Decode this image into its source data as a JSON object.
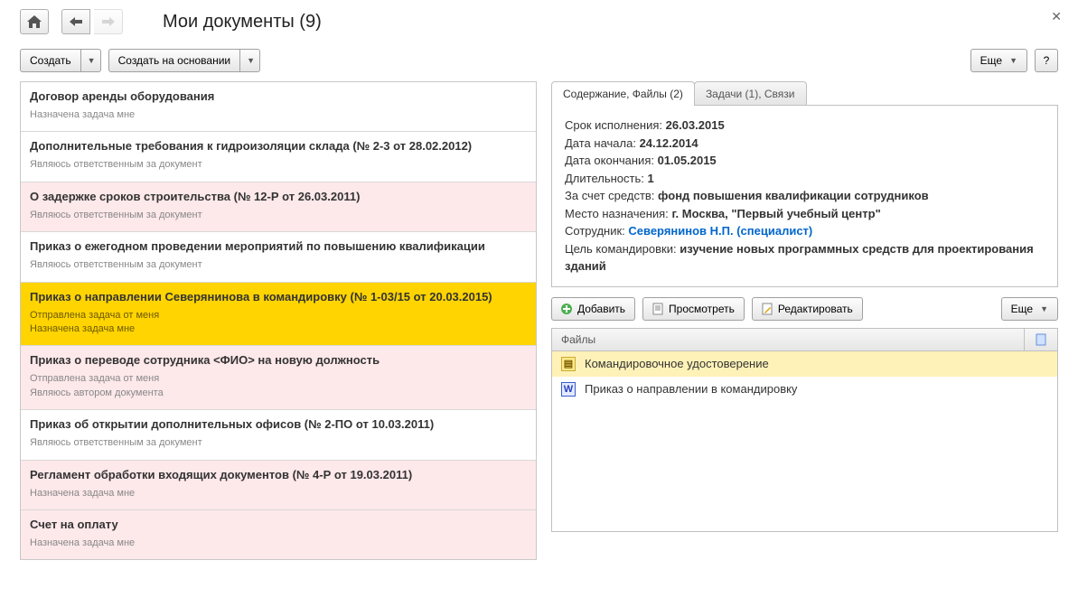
{
  "title": "Мои документы (9)",
  "toolbar": {
    "create": "Создать",
    "create_based_on": "Создать на основании",
    "more": "Еще",
    "help": "?"
  },
  "documents": [
    {
      "title": "Договор аренды оборудования",
      "sub": "Назначена задача мне",
      "variant": ""
    },
    {
      "title": "Дополнительные требования к гидроизоляции склада (№ 2-3 от 28.02.2012)",
      "sub": "Являюсь ответственным за документ",
      "variant": ""
    },
    {
      "title": "О задержке сроков строительства (№ 12-Р от 26.03.2011)",
      "sub": "Являюсь ответственным за документ",
      "variant": "pink"
    },
    {
      "title": "Приказ о ежегодном проведении мероприятий по повышению квалификации",
      "sub": "Являюсь ответственным за документ",
      "variant": ""
    },
    {
      "title": "Приказ о направлении Северянинова в командировку (№ 1-03/15 от 20.03.2015)",
      "sub": "Отправлена задача от меня\nНазначена задача мне",
      "variant": "yellow"
    },
    {
      "title": "Приказ о переводе сотрудника <ФИО> на новую должность",
      "sub": "Отправлена задача от меня\nЯвляюсь автором документа",
      "variant": "pink"
    },
    {
      "title": "Приказ об открытии дополнительных офисов (№ 2-ПО от 10.03.2011)",
      "sub": "Являюсь ответственным за документ",
      "variant": ""
    },
    {
      "title": "Регламент обработки входящих документов (№ 4-Р от 19.03.2011)",
      "sub": "Назначена задача мне",
      "variant": "pink"
    },
    {
      "title": "Счет на оплату",
      "sub": "Назначена задача мне",
      "variant": "pink"
    }
  ],
  "tabs": {
    "content_files": "Содержание, Файлы (2)",
    "tasks_links": "Задачи (1), Связи"
  },
  "details": {
    "due_label": "Срок исполнения:",
    "due_value": "26.03.2015",
    "start_label": "Дата начала:",
    "start_value": "24.12.2014",
    "end_label": "Дата окончания:",
    "end_value": "01.05.2015",
    "duration_label": "Длительность:",
    "duration_value": "1",
    "funds_label": "За счет средств:",
    "funds_value": "фонд повышения квалификации сотрудников",
    "place_label": "Место назначения:",
    "place_value": "г. Москва, \"Первый учебный центр\"",
    "employee_label": "Сотрудник:",
    "employee_value": "Северянинов Н.П. (специалист)",
    "goal_label": "Цель командировки:",
    "goal_value": "изучение новых программных средств для проектирования зданий"
  },
  "file_actions": {
    "add": "Добавить",
    "view": "Просмотреть",
    "edit": "Редактировать",
    "more": "Еще"
  },
  "file_table": {
    "header": "Файлы",
    "rows": [
      {
        "icon": "doc",
        "name": "Командировочное удостоверение",
        "selected": true
      },
      {
        "icon": "word",
        "name": "Приказ о направлении в командировку",
        "selected": false
      }
    ]
  }
}
